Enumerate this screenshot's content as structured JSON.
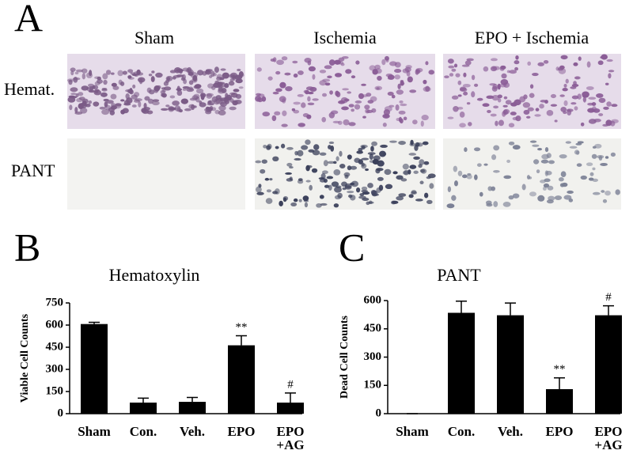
{
  "panel_labels": [
    "A",
    "B",
    "C"
  ],
  "column_headers": [
    "Sham",
    "Ischemia",
    "EPO + Ischemia"
  ],
  "row_labels": [
    "Hemat.",
    "PANT"
  ],
  "chart_data": [
    {
      "type": "bar",
      "title": "Hematoxylin",
      "y_label": "Viable Cell Counts",
      "categories": [
        "Sham",
        "Con.",
        "Veh.",
        "EPO",
        "EPO\n+AG"
      ],
      "values": [
        607,
        75,
        80,
        463,
        75
      ],
      "errors": [
        12,
        30,
        30,
        65,
        65
      ],
      "annotations": [
        null,
        null,
        null,
        "**",
        "#"
      ],
      "color": "#000000",
      "ylim": [
        0,
        750
      ],
      "yticks": [
        0,
        150,
        300,
        450,
        600,
        750
      ]
    },
    {
      "type": "bar",
      "title": "PANT",
      "y_label": "Dead Cell Counts",
      "categories": [
        "Sham",
        "Con.",
        "Veh.",
        "EPO",
        "EPO\n+AG"
      ],
      "values": [
        0,
        535,
        522,
        130,
        522
      ],
      "errors": [
        0,
        62,
        65,
        60,
        50
      ],
      "annotations": [
        null,
        null,
        null,
        "**",
        "#"
      ],
      "color": "#000000",
      "ylim": [
        0,
        600
      ],
      "yticks": [
        0,
        150,
        300,
        450,
        600
      ]
    }
  ]
}
